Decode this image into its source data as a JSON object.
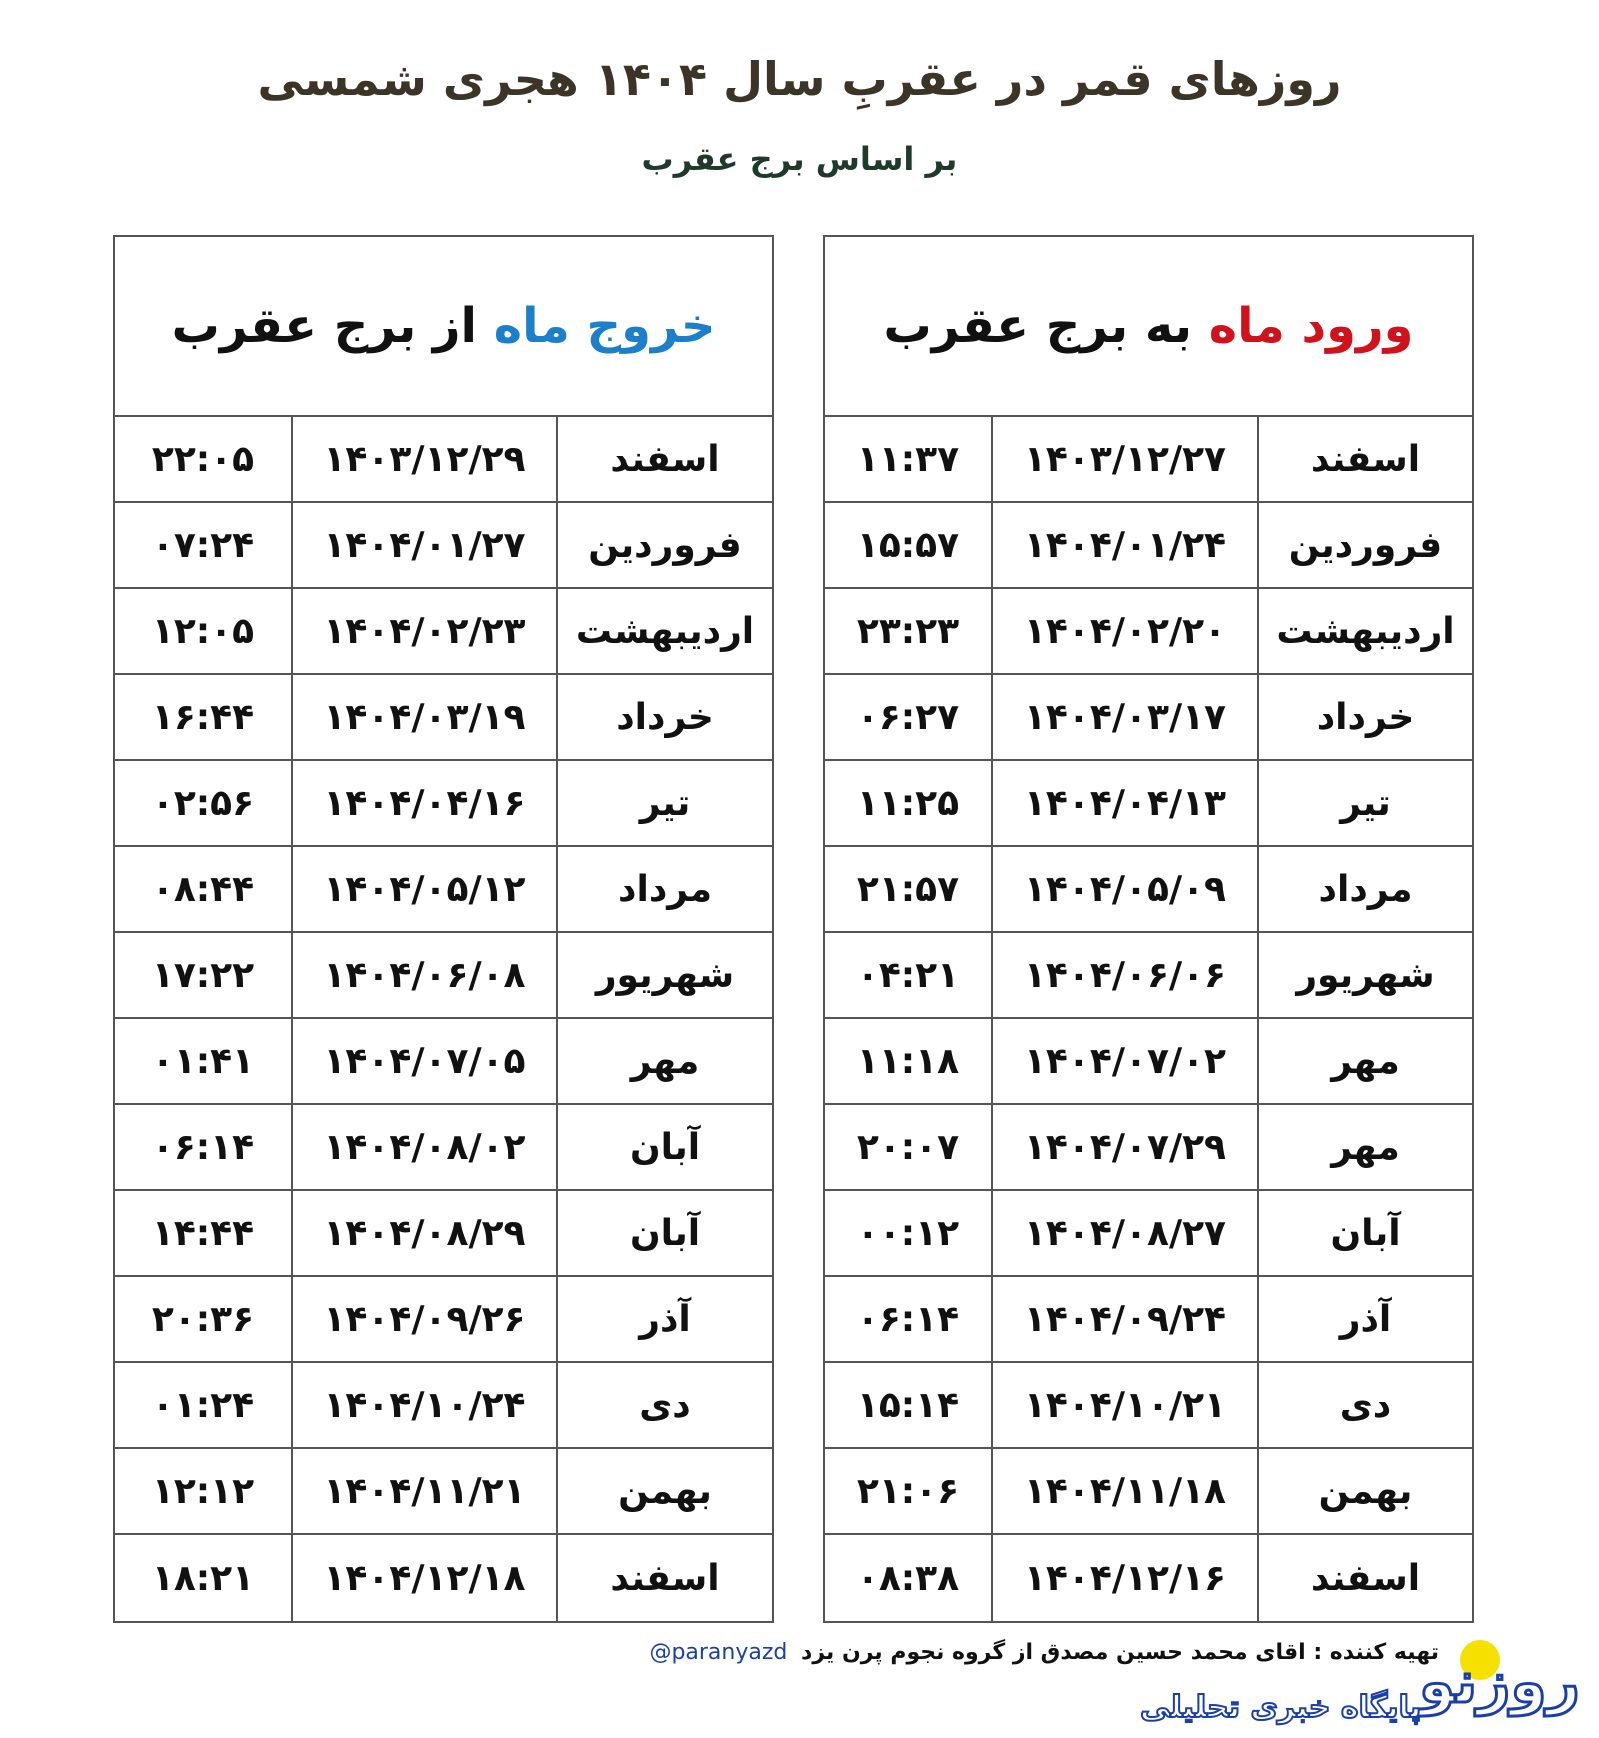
{
  "title": "روزهای قمر در عقربِ سال ۱۴۰۴ هجری شمسی",
  "subtitle": "بر اساس برج عقرب",
  "colors": {
    "entry_accent": "#d1121b",
    "exit_accent": "#1b7fcb",
    "title": "#3d3428",
    "subtitle": "#1f3a2a"
  },
  "entry_table": {
    "heading_accent": "ورود ماه",
    "heading_rest": "به برج عقرب",
    "rows": [
      {
        "month": "اسفند",
        "date": "۱۴۰۳/۱۲/۲۷",
        "time": "۱۱:۳۷"
      },
      {
        "month": "فروردین",
        "date": "۱۴۰۴/۰۱/۲۴",
        "time": "۱۵:۵۷"
      },
      {
        "month": "اردیبهشت",
        "date": "۱۴۰۴/۰۲/۲۰",
        "time": "۲۳:۲۳"
      },
      {
        "month": "خرداد",
        "date": "۱۴۰۴/۰۳/۱۷",
        "time": "۰۶:۲۷"
      },
      {
        "month": "تیر",
        "date": "۱۴۰۴/۰۴/۱۳",
        "time": "۱۱:۲۵"
      },
      {
        "month": "مرداد",
        "date": "۱۴۰۴/۰۵/۰۹",
        "time": "۲۱:۵۷"
      },
      {
        "month": "شهریور",
        "date": "۱۴۰۴/۰۶/۰۶",
        "time": "۰۴:۲۱"
      },
      {
        "month": "مهر",
        "date": "۱۴۰۴/۰۷/۰۲",
        "time": "۱۱:۱۸"
      },
      {
        "month": "مهر",
        "date": "۱۴۰۴/۰۷/۲۹",
        "time": "۲۰:۰۷"
      },
      {
        "month": "آبان",
        "date": "۱۴۰۴/۰۸/۲۷",
        "time": "۰۰:۱۲"
      },
      {
        "month": "آذر",
        "date": "۱۴۰۴/۰۹/۲۴",
        "time": "۰۶:۱۴"
      },
      {
        "month": "دی",
        "date": "۱۴۰۴/۱۰/۲۱",
        "time": "۱۵:۱۴"
      },
      {
        "month": "بهمن",
        "date": "۱۴۰۴/۱۱/۱۸",
        "time": "۲۱:۰۶"
      },
      {
        "month": "اسفند",
        "date": "۱۴۰۴/۱۲/۱۶",
        "time": "۰۸:۳۸"
      }
    ]
  },
  "exit_table": {
    "heading_accent": "خروج ماه",
    "heading_rest": "از برج عقرب",
    "rows": [
      {
        "month": "اسفند",
        "date": "۱۴۰۳/۱۲/۲۹",
        "time": "۲۲:۰۵"
      },
      {
        "month": "فروردین",
        "date": "۱۴۰۴/۰۱/۲۷",
        "time": "۰۷:۲۴"
      },
      {
        "month": "اردیبهشت",
        "date": "۱۴۰۴/۰۲/۲۳",
        "time": "۱۲:۰۵"
      },
      {
        "month": "خرداد",
        "date": "۱۴۰۴/۰۳/۱۹",
        "time": "۱۶:۴۴"
      },
      {
        "month": "تیر",
        "date": "۱۴۰۴/۰۴/۱۶",
        "time": "۰۲:۵۶"
      },
      {
        "month": "مرداد",
        "date": "۱۴۰۴/۰۵/۱۲",
        "time": "۰۸:۴۴"
      },
      {
        "month": "شهریور",
        "date": "۱۴۰۴/۰۶/۰۸",
        "time": "۱۷:۲۲"
      },
      {
        "month": "مهر",
        "date": "۱۴۰۴/۰۷/۰۵",
        "time": "۰۱:۴۱"
      },
      {
        "month": "آبان",
        "date": "۱۴۰۴/۰۸/۰۲",
        "time": "۰۶:۱۴"
      },
      {
        "month": "آبان",
        "date": "۱۴۰۴/۰۸/۲۹",
        "time": "۱۴:۴۴"
      },
      {
        "month": "آذر",
        "date": "۱۴۰۴/۰۹/۲۶",
        "time": "۲۰:۳۶"
      },
      {
        "month": "دی",
        "date": "۱۴۰۴/۱۰/۲۴",
        "time": "۰۱:۲۴"
      },
      {
        "month": "بهمن",
        "date": "۱۴۰۴/۱۱/۲۱",
        "time": "۱۲:۱۲"
      },
      {
        "month": "اسفند",
        "date": "۱۴۰۴/۱۲/۱۸",
        "time": "۱۸:۲۱"
      }
    ]
  },
  "footer": {
    "credit": "تهیه کننده : اقای محمد حسین مصدق از گروه نجوم پرن یزد",
    "handle": "@paranyazd"
  },
  "logo": {
    "name": "روزنو",
    "tagline": "پایگاه خبری تحلیلی",
    "sun_color": "#f5e000",
    "brand_color": "#1a3fa8"
  }
}
